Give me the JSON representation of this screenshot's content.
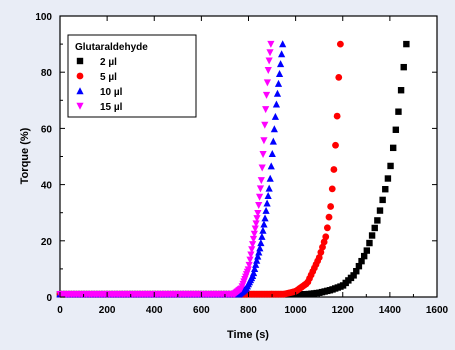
{
  "chart_data": {
    "type": "scatter",
    "xlabel": "Time (s)",
    "ylabel": "Torque (%)",
    "xlim": [
      0,
      1600
    ],
    "ylim": [
      0,
      100
    ],
    "x_ticks": [
      0,
      200,
      400,
      600,
      800,
      1000,
      1200,
      1400,
      1600
    ],
    "y_ticks": [
      0,
      20,
      40,
      60,
      80,
      100
    ],
    "grid": false,
    "legend": {
      "title": "Glutaraldehyde",
      "placement": "top-left",
      "entries": [
        "2 µl",
        "5 µl",
        "10 µl",
        "15 µl"
      ]
    },
    "series": [
      {
        "name": "2 µl",
        "color": "#000000",
        "marker": "square",
        "onset": 1000,
        "baseline": [
          [
            0,
            1
          ],
          [
            900,
            1
          ],
          [
            1000,
            1
          ]
        ],
        "curve": [
          [
            1000,
            1
          ],
          [
            1050,
            1
          ],
          [
            1100,
            1.5
          ],
          [
            1150,
            2.5
          ],
          [
            1200,
            4
          ],
          [
            1250,
            8
          ],
          [
            1300,
            16
          ],
          [
            1350,
            28
          ],
          [
            1400,
            45
          ],
          [
            1440,
            68
          ],
          [
            1470,
            90
          ]
        ]
      },
      {
        "name": "5 µl",
        "color": "#ff0000",
        "marker": "circle",
        "onset": 900,
        "baseline": [
          [
            0,
            1
          ],
          [
            800,
            1
          ],
          [
            900,
            1
          ]
        ],
        "curve": [
          [
            900,
            1
          ],
          [
            950,
            1
          ],
          [
            1000,
            2
          ],
          [
            1050,
            5
          ],
          [
            1100,
            14
          ],
          [
            1130,
            22
          ],
          [
            1150,
            33
          ],
          [
            1165,
            48
          ],
          [
            1175,
            62
          ],
          [
            1183,
            78
          ],
          [
            1190,
            90
          ]
        ]
      },
      {
        "name": "10 µl",
        "color": "#0000ff",
        "marker": "triangle-up",
        "onset": 760,
        "baseline": [
          [
            0,
            1
          ],
          [
            700,
            1
          ],
          [
            760,
            1
          ]
        ],
        "curve": [
          [
            760,
            1
          ],
          [
            790,
            3
          ],
          [
            820,
            8
          ],
          [
            850,
            18
          ],
          [
            870,
            28
          ],
          [
            890,
            40
          ],
          [
            905,
            55
          ],
          [
            920,
            70
          ],
          [
            935,
            82
          ],
          [
            945,
            90
          ]
        ]
      },
      {
        "name": "15 µl",
        "color": "#ff00ff",
        "marker": "triangle-down",
        "onset": 740,
        "baseline": [
          [
            0,
            1
          ],
          [
            700,
            1
          ],
          [
            740,
            1
          ]
        ],
        "curve": [
          [
            740,
            1
          ],
          [
            770,
            3
          ],
          [
            800,
            10
          ],
          [
            820,
            20
          ],
          [
            840,
            30
          ],
          [
            855,
            42
          ],
          [
            865,
            55
          ],
          [
            875,
            70
          ],
          [
            885,
            82
          ],
          [
            895,
            90
          ]
        ]
      }
    ]
  }
}
